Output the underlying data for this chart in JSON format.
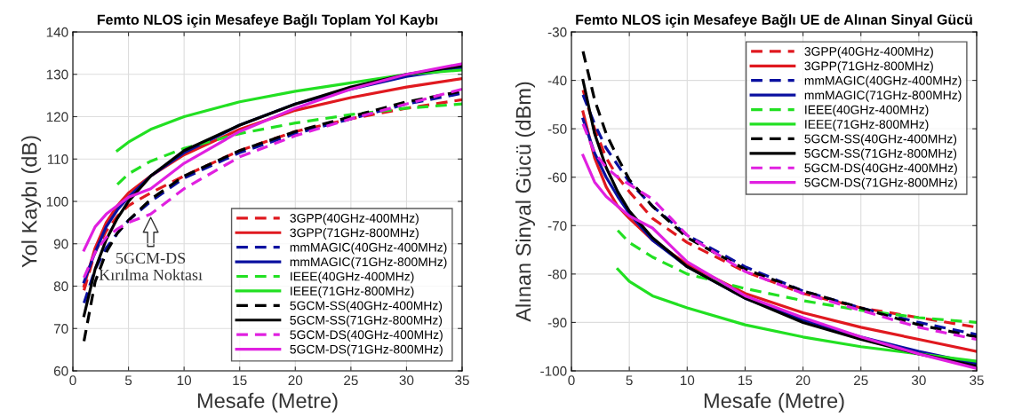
{
  "chart_data": [
    {
      "type": "line",
      "title": "Femto NLOS için Mesafeye Bağlı Toplam Yol Kaybı",
      "xlabel": "Mesafe (Metre)",
      "ylabel": "Yol Kaybı (dB)",
      "xlim": [
        0,
        35
      ],
      "ylim": [
        60,
        140
      ],
      "xticks": [
        0,
        5,
        10,
        15,
        20,
        25,
        30,
        35
      ],
      "yticks": [
        60,
        70,
        80,
        90,
        100,
        110,
        120,
        130,
        140
      ],
      "grid": true,
      "legend": "bottom right",
      "annotations": [
        "5GCM-DS\nKırılma Noktası"
      ],
      "series": [
        {
          "name": "3GPP(40GHz-400MHz)",
          "color": "#e0191f",
          "line_style": "dashed",
          "x": [
            1,
            2,
            3,
            4,
            5,
            7,
            10,
            15,
            20,
            25,
            30,
            35
          ],
          "values": [
            79,
            88,
            93,
            96.5,
            99,
            102,
            106,
            112,
            116.5,
            119.5,
            122,
            124
          ]
        },
        {
          "name": "3GPP(71GHz-800MHz)",
          "color": "#e0191f",
          "line_style": "solid",
          "x": [
            1,
            2,
            3,
            4,
            5,
            7,
            10,
            15,
            20,
            25,
            30,
            35
          ],
          "values": [
            80,
            89,
            95,
            99,
            102,
            106,
            111,
            117,
            121.5,
            124.5,
            127,
            129
          ]
        },
        {
          "name": "mmMAGIC(40GHz-400MHz)",
          "color": "#0a10a0",
          "line_style": "dashed",
          "x": [
            1,
            2,
            3,
            4,
            5,
            7,
            10,
            15,
            20,
            25,
            30,
            35
          ],
          "values": [
            76,
            84,
            89,
            92.5,
            95.5,
            100,
            105.5,
            111.5,
            116,
            119.5,
            123,
            125.5
          ]
        },
        {
          "name": "mmMAGIC(71GHz-800MHz)",
          "color": "#0a10a0",
          "line_style": "solid",
          "x": [
            1,
            2,
            3,
            4,
            5,
            7,
            10,
            15,
            20,
            25,
            30,
            35
          ],
          "values": [
            81,
            88,
            94,
            98,
            101,
            106,
            111.5,
            118,
            123,
            126.5,
            129.5,
            131.5
          ]
        },
        {
          "name": "IEEE(40GHz-400MHz)",
          "color": "#22e022",
          "line_style": "dashed",
          "x": [
            4,
            5,
            7,
            10,
            15,
            20,
            25,
            30,
            35
          ],
          "values": [
            104,
            106.5,
            109.5,
            112.5,
            116,
            118.5,
            120.5,
            122,
            123
          ]
        },
        {
          "name": "IEEE(71GHz-800MHz)",
          "color": "#22e022",
          "line_style": "solid",
          "x": [
            4,
            5,
            7,
            10,
            15,
            20,
            25,
            30,
            35
          ],
          "values": [
            112,
            114,
            117,
            120,
            123.5,
            126,
            128,
            130,
            131
          ]
        },
        {
          "name": "5GCM-SS(40GHz-400MHz)",
          "color": "#000000",
          "line_style": "dashed",
          "x": [
            1,
            2,
            3,
            4,
            5,
            7,
            10,
            15,
            20,
            25,
            30,
            35
          ],
          "values": [
            67,
            81,
            88,
            92.5,
            95.5,
            100.5,
            106,
            112,
            116.5,
            120,
            123.5,
            126
          ]
        },
        {
          "name": "5GCM-SS(71GHz-800MHz)",
          "color": "#000000",
          "line_style": "solid",
          "x": [
            1,
            2,
            3,
            4,
            5,
            7,
            10,
            15,
            20,
            25,
            30,
            35
          ],
          "values": [
            73,
            84,
            91,
            96,
            100,
            106,
            112,
            118,
            123,
            127,
            130,
            132
          ]
        },
        {
          "name": "5GCM-DS(40GHz-400MHz)",
          "color": "#e020e0",
          "line_style": "dashed",
          "x": [
            1,
            2,
            3,
            4,
            5,
            7,
            10,
            15,
            20,
            25,
            30,
            35
          ],
          "values": [
            82,
            88,
            91.5,
            93.5,
            95,
            97,
            103,
            110.5,
            115.5,
            119.5,
            123,
            126.5
          ]
        },
        {
          "name": "5GCM-DS(71GHz-800MHz)",
          "color": "#e020e0",
          "line_style": "solid",
          "x": [
            1,
            2,
            3,
            4,
            5,
            7,
            10,
            15,
            20,
            25,
            30,
            35
          ],
          "values": [
            88.5,
            94,
            97,
            99,
            101,
            103,
            109,
            116.5,
            122,
            126.5,
            130,
            132.5
          ]
        }
      ]
    },
    {
      "type": "line",
      "title": "Femto NLOS için Mesafeye Bağlı UE de Alınan Sinyal Gücü",
      "xlabel": "Mesafe (Metre)",
      "ylabel": "Alınan Sinyal Gücü (dBm)",
      "xlim": [
        0,
        35
      ],
      "ylim": [
        -100,
        -30
      ],
      "xticks": [
        0,
        5,
        10,
        15,
        20,
        25,
        30,
        35
      ],
      "yticks": [
        -100,
        -90,
        -80,
        -70,
        -60,
        -50,
        -40,
        -30
      ],
      "grid": true,
      "legend": "top right",
      "series": [
        {
          "name": "3GPP(40GHz-400MHz)",
          "color": "#e0191f",
          "line_style": "dashed",
          "x": [
            1,
            2,
            3,
            4,
            5,
            7,
            10,
            15,
            20,
            25,
            30,
            35
          ],
          "values": [
            -42,
            -50,
            -56,
            -60,
            -63,
            -68.5,
            -73.5,
            -79.5,
            -84,
            -87,
            -89,
            -91
          ]
        },
        {
          "name": "3GPP(71GHz-800MHz)",
          "color": "#e0191f",
          "line_style": "solid",
          "x": [
            1,
            2,
            3,
            4,
            5,
            7,
            10,
            15,
            20,
            25,
            30,
            35
          ],
          "values": [
            -46.5,
            -56,
            -62,
            -66,
            -68.5,
            -73,
            -78,
            -84,
            -88,
            -91,
            -93.5,
            -96
          ]
        },
        {
          "name": "mmMAGIC(40GHz-400MHz)",
          "color": "#0a10a0",
          "line_style": "dashed",
          "x": [
            1,
            2,
            3,
            4,
            5,
            7,
            10,
            15,
            20,
            25,
            30,
            35
          ],
          "values": [
            -43,
            -49,
            -54,
            -57.5,
            -61,
            -66,
            -72,
            -78.5,
            -83.5,
            -87,
            -90,
            -92.5
          ]
        },
        {
          "name": "mmMAGIC(71GHz-800MHz)",
          "color": "#0a10a0",
          "line_style": "solid",
          "x": [
            1,
            2,
            3,
            4,
            5,
            7,
            10,
            15,
            20,
            25,
            30,
            35
          ],
          "values": [
            -48,
            -55,
            -60,
            -64,
            -67.5,
            -73,
            -78.5,
            -85,
            -89.5,
            -93,
            -96,
            -98.5
          ]
        },
        {
          "name": "IEEE(40GHz-400MHz)",
          "color": "#22e022",
          "line_style": "dashed",
          "x": [
            4,
            5,
            7,
            10,
            15,
            20,
            25,
            30,
            35
          ],
          "values": [
            -71,
            -73.5,
            -76.5,
            -80,
            -83,
            -85.5,
            -87.5,
            -89,
            -90
          ]
        },
        {
          "name": "IEEE(71GHz-800MHz)",
          "color": "#22e022",
          "line_style": "solid",
          "x": [
            4,
            5,
            7,
            10,
            15,
            20,
            25,
            30,
            35
          ],
          "values": [
            -79,
            -81.5,
            -84.5,
            -87,
            -90.5,
            -93,
            -95,
            -96.5,
            -98
          ]
        },
        {
          "name": "5GCM-SS(40GHz-400MHz)",
          "color": "#000000",
          "line_style": "dashed",
          "x": [
            1,
            2,
            3,
            4,
            5,
            7,
            10,
            15,
            20,
            25,
            30,
            35
          ],
          "values": [
            -34,
            -44,
            -51,
            -56,
            -60.5,
            -66,
            -72.5,
            -79,
            -83.5,
            -87,
            -90.5,
            -93
          ]
        },
        {
          "name": "5GCM-SS(71GHz-800MHz)",
          "color": "#000000",
          "line_style": "solid",
          "x": [
            1,
            2,
            3,
            4,
            5,
            7,
            10,
            15,
            20,
            25,
            30,
            35
          ],
          "values": [
            -40,
            -51,
            -58,
            -63,
            -67,
            -72.5,
            -78.5,
            -85,
            -90,
            -93.5,
            -96.5,
            -99
          ]
        },
        {
          "name": "5GCM-DS(40GHz-400MHz)",
          "color": "#e020e0",
          "line_style": "dashed",
          "x": [
            1,
            2,
            3,
            4,
            5,
            7,
            10,
            15,
            20,
            25,
            30,
            35
          ],
          "values": [
            -49,
            -55,
            -58,
            -60,
            -61.5,
            -64.5,
            -72,
            -79.5,
            -84,
            -87.5,
            -91,
            -93.5
          ]
        },
        {
          "name": "5GCM-DS(71GHz-800MHz)",
          "color": "#e020e0",
          "line_style": "solid",
          "x": [
            1,
            2,
            3,
            4,
            5,
            7,
            10,
            15,
            20,
            25,
            30,
            35
          ],
          "values": [
            -55.5,
            -61,
            -64,
            -66,
            -68,
            -70.5,
            -77.5,
            -84.5,
            -89,
            -93,
            -96.5,
            -99.5
          ]
        }
      ]
    }
  ]
}
